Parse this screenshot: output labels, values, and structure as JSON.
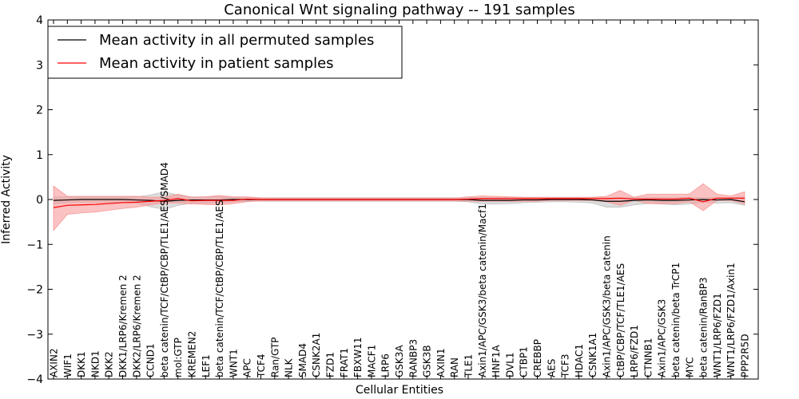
{
  "chart_data": {
    "type": "line",
    "title": "Canonical Wnt signaling pathway -- 191 samples",
    "xlabel": "Cellular Entities",
    "ylabel": "Inferred Activity",
    "ylim": [
      -4,
      4
    ],
    "yticks": [
      "−4",
      "−3",
      "−2",
      "−1",
      "0",
      "1",
      "2",
      "3",
      "4"
    ],
    "grid": false,
    "legend_position": "top-left",
    "categories": [
      "AXIN2",
      "WIF1",
      "DKK1",
      "NKD1",
      "DKK2",
      "DKK1/LRP6/Kremen 2",
      "DKK2/LRP6/Kremen 2",
      "CCND1",
      "beta catenin/TCF/CtBP/CBP/TLE1/AES/SMAD4",
      "mol:GTP",
      "KREMEN2",
      "LEF1",
      "beta catenin/TCF/CtBP/CBP/TLE1/AES",
      "WNT1",
      "APC",
      "TCF4",
      "Ran/GTP",
      "NLK",
      "SMAD4",
      "CSNK2A1",
      "FZD1",
      "FRAT1",
      "FBXW11",
      "MACF1",
      "LRP6",
      "GSK3A",
      "RANBP3",
      "GSK3B",
      "AXIN1",
      "RAN",
      "TLE1",
      "Axin1/APC/GSK3/beta catenin/Macf1",
      "HNF1A",
      "DVL1",
      "CTBP1",
      "CREBBP",
      "AES",
      "TCF3",
      "HDAC1",
      "CSNK1A1",
      "Axin1/APC/GSK3/beta catenin",
      "CtBP/CBP/TCF/TLE1/AES",
      "LRP6/FZD1",
      "CTNNB1",
      "Axin1/APC/GSK3",
      "beta catenin/beta TrCP1",
      "MYC",
      "beta catenin/RanBP3",
      "WNT1/LRP6/FZD1",
      "WNT1/LRP6/FZD1/Axin1",
      "PPP2R5D"
    ],
    "series": [
      {
        "name": "Mean activity in all permuted samples",
        "color": "#000000",
        "band_color": "#bfbfbf",
        "mean": [
          -0.02,
          -0.01,
          0,
          0,
          0,
          0,
          -0.01,
          -0.02,
          -0.04,
          -0.02,
          -0.01,
          -0.01,
          -0.01,
          0,
          0,
          0,
          0,
          0,
          0,
          0,
          0,
          0,
          0,
          0,
          0,
          0,
          0,
          0,
          0,
          0,
          0,
          -0.02,
          -0.02,
          -0.02,
          -0.01,
          -0.01,
          0,
          0,
          0,
          -0.01,
          -0.04,
          -0.04,
          -0.02,
          -0.01,
          -0.02,
          -0.02,
          -0.01,
          0,
          -0.01,
          0,
          -0.05
        ],
        "upper": [
          0.05,
          0.06,
          0.06,
          0.06,
          0.06,
          0.06,
          0.06,
          0.1,
          0.17,
          0.1,
          0.06,
          0.06,
          0.06,
          0.05,
          0.04,
          0.04,
          0.04,
          0.04,
          0.04,
          0.04,
          0.04,
          0.04,
          0.04,
          0.04,
          0.04,
          0.04,
          0.04,
          0.04,
          0.04,
          0.04,
          0.04,
          0.04,
          0.04,
          0.04,
          0.04,
          0.04,
          0.04,
          0.04,
          0.04,
          0.04,
          0.04,
          0.04,
          0.04,
          0.04,
          0.04,
          0.04,
          0.04,
          0.04,
          0.04,
          0.04,
          0.06
        ],
        "lower": [
          -0.1,
          -0.07,
          -0.06,
          -0.06,
          -0.06,
          -0.07,
          -0.08,
          -0.16,
          -0.22,
          -0.13,
          -0.08,
          -0.08,
          -0.07,
          -0.05,
          -0.04,
          -0.04,
          -0.04,
          -0.04,
          -0.04,
          -0.04,
          -0.04,
          -0.04,
          -0.04,
          -0.04,
          -0.04,
          -0.04,
          -0.04,
          -0.04,
          -0.04,
          -0.04,
          -0.05,
          -0.1,
          -0.1,
          -0.09,
          -0.07,
          -0.06,
          -0.05,
          -0.05,
          -0.06,
          -0.08,
          -0.17,
          -0.17,
          -0.12,
          -0.09,
          -0.1,
          -0.12,
          -0.1,
          -0.06,
          -0.08,
          -0.07,
          -0.13
        ]
      },
      {
        "name": "Mean activity in patient samples",
        "color": "#ff0000",
        "band_color": "#f79a9a",
        "mean": [
          -0.18,
          -0.13,
          -0.12,
          -0.11,
          -0.09,
          -0.07,
          -0.06,
          -0.04,
          -0.02,
          0.02,
          -0.03,
          -0.02,
          -0.02,
          -0.02,
          0.01,
          0,
          0,
          0,
          0,
          0,
          0,
          0,
          0,
          0,
          0,
          0,
          0,
          0,
          0,
          0,
          0.01,
          0.02,
          0.02,
          0.02,
          0.02,
          0.02,
          0.02,
          0.02,
          0.02,
          0.02,
          0.02,
          0.03,
          0.01,
          0.01,
          0.01,
          0.01,
          0.03,
          -0.05,
          0.03,
          0.03,
          0.03
        ],
        "upper": [
          0.3,
          0.07,
          0.07,
          0.07,
          0.07,
          0.07,
          0.07,
          0.05,
          0.05,
          0.12,
          0.05,
          0.06,
          0.09,
          0.06,
          0.06,
          0.04,
          0.03,
          0.03,
          0.03,
          0.03,
          0.03,
          0.03,
          0.03,
          0.03,
          0.03,
          0.03,
          0.03,
          0.03,
          0.03,
          0.03,
          0.06,
          0.08,
          0.07,
          0.06,
          0.05,
          0.05,
          0.05,
          0.05,
          0.05,
          0.05,
          0.07,
          0.2,
          0.05,
          0.12,
          0.12,
          0.12,
          0.12,
          0.35,
          0.12,
          0.08,
          0.17
        ],
        "lower": [
          -0.69,
          -0.33,
          -0.3,
          -0.28,
          -0.24,
          -0.2,
          -0.17,
          -0.12,
          -0.08,
          -0.08,
          -0.1,
          -0.11,
          -0.12,
          -0.09,
          -0.05,
          -0.03,
          -0.03,
          -0.03,
          -0.03,
          -0.03,
          -0.03,
          -0.03,
          -0.03,
          -0.03,
          -0.03,
          -0.03,
          -0.03,
          -0.03,
          -0.03,
          -0.03,
          -0.04,
          -0.04,
          -0.04,
          -0.04,
          -0.04,
          -0.04,
          -0.02,
          -0.02,
          -0.02,
          -0.02,
          -0.05,
          -0.13,
          -0.02,
          -0.09,
          -0.09,
          -0.09,
          -0.05,
          -0.25,
          -0.02,
          -0.02,
          -0.1
        ]
      }
    ]
  }
}
